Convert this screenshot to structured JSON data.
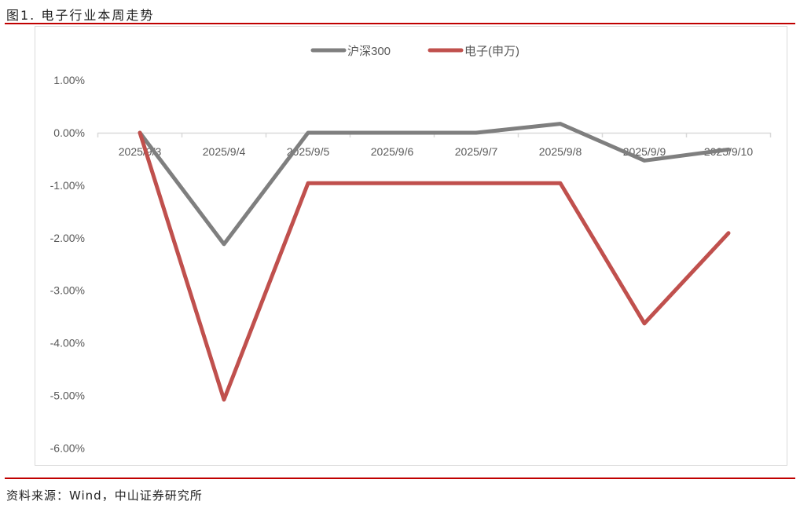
{
  "title": "图1. 电子行业本周走势",
  "source": "资料来源：Wind，中山证券研究所",
  "colors": {
    "rule": "#c00000",
    "hs300": "#7f7f7f",
    "electronics": "#c0504d"
  },
  "chart_data": {
    "type": "line",
    "title": "",
    "xlabel": "",
    "ylabel": "",
    "categories": [
      "2025/9/3",
      "2025/9/4",
      "2025/9/5",
      "2025/9/6",
      "2025/9/7",
      "2025/9/8",
      "2025/9/9",
      "2025/9/10"
    ],
    "ylim": [
      -6,
      1
    ],
    "yticks": [
      "1.00%",
      "0.00%",
      "-1.00%",
      "-2.00%",
      "-3.00%",
      "-4.00%",
      "-5.00%",
      "-6.00%"
    ],
    "ytick_values": [
      1,
      0,
      -1,
      -2,
      -3,
      -4,
      -5,
      -6
    ],
    "legend_position": "top",
    "grid": false,
    "series": [
      {
        "name": "沪深300",
        "color": "#7f7f7f",
        "values": [
          0,
          -2.12,
          0,
          0,
          0,
          0.17,
          -0.53,
          -0.32
        ]
      },
      {
        "name": "电子(申万)",
        "color": "#c0504d",
        "values": [
          0,
          -5.08,
          -0.96,
          -0.96,
          -0.96,
          -0.96,
          -3.63,
          -1.91
        ]
      }
    ]
  }
}
